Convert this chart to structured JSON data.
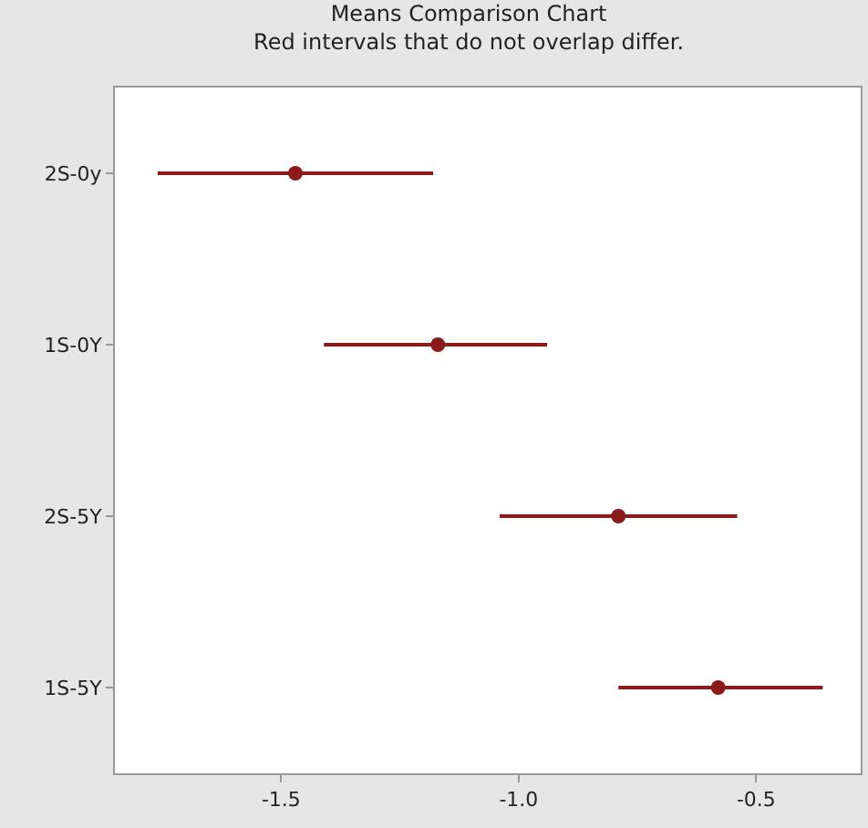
{
  "chart_data": {
    "type": "scatter",
    "orientation": "horizontal",
    "title": "Means Comparison Chart",
    "subtitle": "Red intervals that do not overlap differ.",
    "categories": [
      "2S-0y",
      "1S-0Y",
      "2S-5Y",
      "1S-5Y"
    ],
    "values": [
      -1.47,
      -1.17,
      -0.79,
      -0.58
    ],
    "errors": [
      [
        -1.76,
        -1.18
      ],
      [
        -1.41,
        -0.94
      ],
      [
        -1.04,
        -0.54
      ],
      [
        -0.79,
        -0.36
      ]
    ],
    "color": "#8b1a1a",
    "xlim": [
      -1.85,
      -0.28
    ],
    "xticks": [
      {
        "value": -1.5,
        "label": "-1.5"
      },
      {
        "value": -1.0,
        "label": "-1.0"
      },
      {
        "value": -0.5,
        "label": "-0.5"
      }
    ],
    "marker": "circle"
  }
}
